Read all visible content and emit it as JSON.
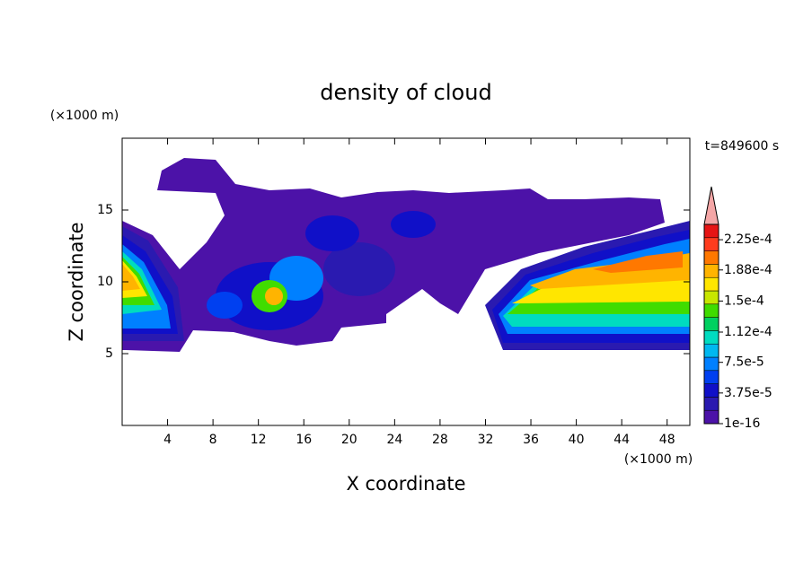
{
  "chart_data": {
    "type": "contour",
    "title": "density of cloud",
    "xlabel": "X coordinate",
    "ylabel": "Z coordinate",
    "x_unit": "(×1000 m)",
    "y_unit": "(×1000 m)",
    "annotation": "t=849600 s",
    "xlim": [
      0,
      50
    ],
    "xticks": [
      4,
      8,
      12,
      16,
      20,
      24,
      28,
      32,
      36,
      40,
      44,
      48
    ],
    "ylim": [
      0,
      20
    ],
    "yticks": [
      5,
      10,
      15
    ],
    "colorbar": {
      "lim": [
        1e-16,
        0.00024375
      ],
      "extend": "max",
      "extend_color": "#f4a6a6",
      "colors": [
        "#4c12a8",
        "#2a1ab0",
        "#1010c8",
        "#0040f0",
        "#0080ff",
        "#00b8f0",
        "#00dcc0",
        "#00d060",
        "#40dc00",
        "#c8e600",
        "#ffe600",
        "#ffb400",
        "#ff7800",
        "#ff3c1e",
        "#e61414"
      ],
      "ticks": [
        1e-16,
        {
          "value": 3.75e-05,
          "label": "3.75e-5"
        },
        {
          "value": 7.5e-05,
          "label": "7.5e-5"
        },
        {
          "value": 0.000112,
          "label": "1.12e-4"
        },
        {
          "value": 0.00015,
          "label": "1.5e-4"
        },
        {
          "value": 0.000188,
          "label": "1.88e-4"
        },
        {
          "value": 0.000225,
          "label": "2.25e-4"
        }
      ]
    }
  }
}
